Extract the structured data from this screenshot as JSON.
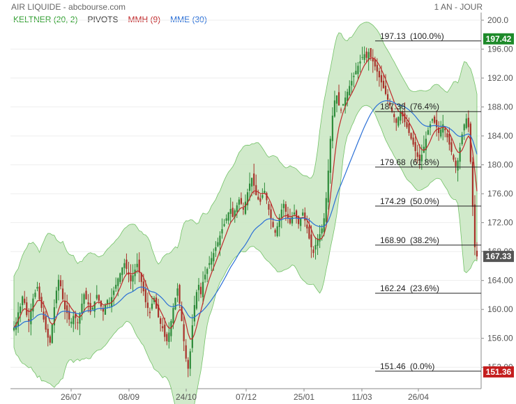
{
  "header": {
    "title": "AIR LIQUIDE - abcbourse.com",
    "period": "1 AN - JOUR"
  },
  "legend": [
    {
      "label": "KELTNER (20, 2)",
      "color": "#2e9e2e"
    },
    {
      "label": "PIVOTS",
      "color": "#333333"
    },
    {
      "label": "MMH (9)",
      "color": "#c0282a"
    },
    {
      "label": "MME (30)",
      "color": "#2a6fd6"
    }
  ],
  "colors": {
    "up_candle": "#2e8b3a",
    "down_candle": "#a8322a",
    "keltner_fill": "#cfe9c9",
    "keltner_line": "#6cbf5f",
    "mmh": "#c0282a",
    "mme": "#2a6fd6",
    "last_price_badge": "#c41e1e",
    "high_badge": "#1e8a2a"
  },
  "chart_data": {
    "type": "candlestick",
    "title": "AIR LIQUIDE - abcbourse.com",
    "period": "1 AN - JOUR",
    "ylim": [
      150,
      200
    ],
    "yticks": [
      "200.0",
      "196.00",
      "192.00",
      "188.00",
      "184.00",
      "180.00",
      "176.00",
      "172.00",
      "168.00",
      "164.00",
      "160.00",
      "156.00",
      "152.00"
    ],
    "xticks": [
      "26/07",
      "08/09",
      "24/10",
      "07/12",
      "25/01",
      "11/03",
      "26/04"
    ],
    "grid": true,
    "fibonacci_levels": [
      {
        "price": 197.13,
        "label": "197.13",
        "pct": "(100.0%)"
      },
      {
        "price": 187.36,
        "label": "187.36",
        "pct": "(76.4%)"
      },
      {
        "price": 179.68,
        "label": "179.68",
        "pct": "(61.8%)"
      },
      {
        "price": 174.29,
        "label": "174.29",
        "pct": "(50.0%)"
      },
      {
        "price": 168.9,
        "label": "168.90",
        "pct": "(38.2%)"
      },
      {
        "price": 162.24,
        "label": "162.24",
        "pct": "(23.6%)"
      },
      {
        "price": 151.46,
        "label": "151.46",
        "pct": "(0.0%)"
      }
    ],
    "badges": [
      {
        "value": "197.42",
        "price": 197.42,
        "kind": "high"
      },
      {
        "value": "167.33",
        "price": 167.33,
        "kind": "last"
      },
      {
        "value": "151.36",
        "price": 151.36,
        "kind": "low"
      }
    ],
    "series_close": [
      157.5,
      158.2,
      159.6,
      160.4,
      161.8,
      160.9,
      159.2,
      158.4,
      160.1,
      161.5,
      162.3,
      163.1,
      161.4,
      160.2,
      158.6,
      157.2,
      156.1,
      155.4,
      157.9,
      160.3,
      162.6,
      164.1,
      163.2,
      161.4,
      160.0,
      159.5,
      158.6,
      158.3,
      159.1,
      158.8,
      158.1,
      159.5,
      160.8,
      162.1,
      161.4,
      160.7,
      159.6,
      160.2,
      161.1,
      162.0,
      161.2,
      160.4,
      159.7,
      160.6,
      161.3,
      160.9,
      161.7,
      162.6,
      163.4,
      164.3,
      165.0,
      165.8,
      166.4,
      165.6,
      164.8,
      163.9,
      164.7,
      165.5,
      166.3,
      165.1,
      163.8,
      162.5,
      161.0,
      160.2,
      159.5,
      160.8,
      161.6,
      160.1,
      158.9,
      158.0,
      157.4,
      156.2,
      155.6,
      156.8,
      158.4,
      160.2,
      161.6,
      162.9,
      160.8,
      158.4,
      155.6,
      153.2,
      151.8,
      154.2,
      157.8,
      160.6,
      162.4,
      163.4,
      162.1,
      163.8,
      164.8,
      165.6,
      166.4,
      167.1,
      167.8,
      168.6,
      169.3,
      170.2,
      171.1,
      171.8,
      172.6,
      173.4,
      173.9,
      172.8,
      173.7,
      174.4,
      175.2,
      174.6,
      173.8,
      174.9,
      176.2,
      177.4,
      178.2,
      177.1,
      175.8,
      175.2,
      174.9,
      175.8,
      176.4,
      175.1,
      173.8,
      172.6,
      171.4,
      170.6,
      171.5,
      172.7,
      173.8,
      174.6,
      173.5,
      172.6,
      171.9,
      172.8,
      173.4,
      172.6,
      171.8,
      172.7,
      173.4,
      172.3,
      171.2,
      169.8,
      168.6,
      167.8,
      168.9,
      169.8,
      170.4,
      171.2,
      172.6,
      175.4,
      179.2,
      183.6,
      186.8,
      188.9,
      189.6,
      188.2,
      187.6,
      188.4,
      189.3,
      190.1,
      190.9,
      191.6,
      192.3,
      193.0,
      193.7,
      194.3,
      194.9,
      195.3,
      194.8,
      195.6,
      194.9,
      194.3,
      193.6,
      192.9,
      192.1,
      191.4,
      190.6,
      189.8,
      189.0,
      188.2,
      187.4,
      186.6,
      185.8,
      186.6,
      187.4,
      186.7,
      185.9,
      185.2,
      184.4,
      183.6,
      182.8,
      181.9,
      181.1,
      180.6,
      181.4,
      182.5,
      183.6,
      184.8,
      185.6,
      186.3,
      185.8,
      185.2,
      184.4,
      184.9,
      185.6,
      184.8,
      183.8,
      182.8,
      181.8,
      180.7,
      179.8,
      180.6,
      182.4,
      184.2,
      185.6,
      186.4,
      185.2,
      180.4,
      174.2,
      168.6,
      167.33
    ]
  }
}
